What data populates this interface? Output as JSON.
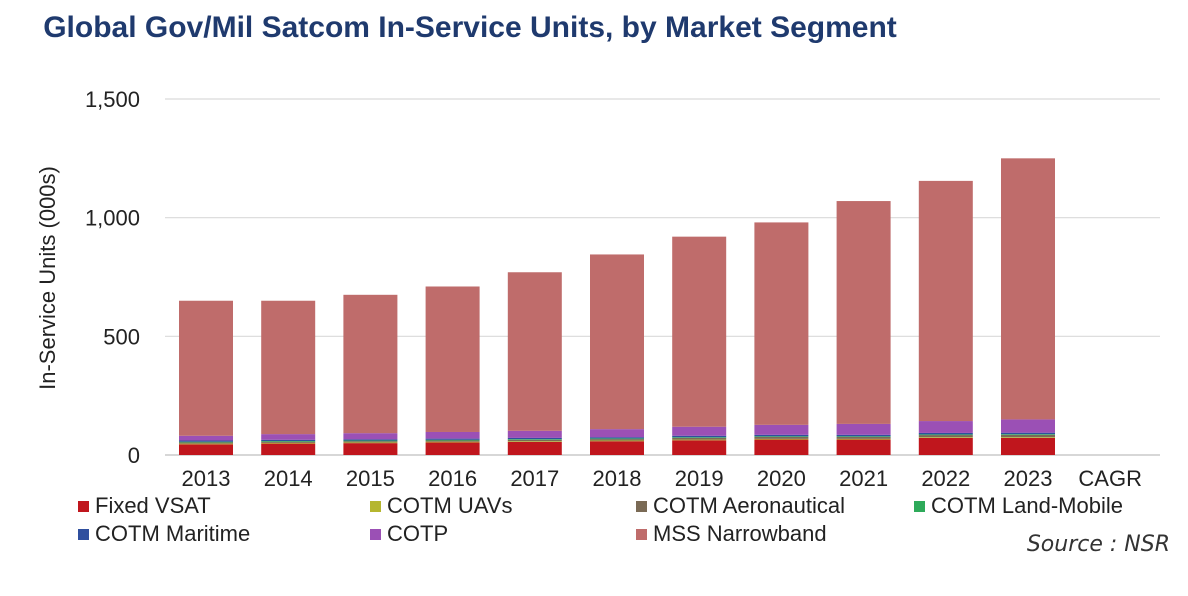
{
  "chart_data": {
    "type": "bar",
    "stacked": true,
    "title": "Global Gov/Mil Satcom In-Service Units, by Market Segment",
    "ylabel": "In-Service Units (000s)",
    "xlabel": "",
    "ylim": [
      0,
      1500
    ],
    "yticks": [
      0,
      500,
      1000,
      1500
    ],
    "ytick_labels": [
      "0",
      "500",
      "1,000",
      "1,500"
    ],
    "grid": true,
    "legend_placement": "bottom",
    "categories": [
      "2013",
      "2014",
      "2015",
      "2016",
      "2017",
      "2018",
      "2019",
      "2020",
      "2021",
      "2022",
      "2023",
      "CAGR"
    ],
    "series": [
      {
        "name": "Fixed VSAT",
        "color": "#c0161d",
        "values": [
          45,
          48,
          50,
          53,
          55,
          58,
          62,
          65,
          65,
          72,
          72,
          null
        ]
      },
      {
        "name": "COTM UAVs",
        "color": "#b5b62f",
        "values": [
          3,
          3,
          3,
          3,
          3,
          3,
          3,
          3,
          3,
          3,
          3,
          null
        ]
      },
      {
        "name": "COTM Aeronautical",
        "color": "#7a6a55",
        "values": [
          5,
          5,
          5,
          5,
          6,
          6,
          7,
          8,
          8,
          9,
          10,
          null
        ]
      },
      {
        "name": "COTM Land-Mobile",
        "color": "#2eaa5a",
        "values": [
          3,
          3,
          3,
          3,
          3,
          3,
          3,
          3,
          3,
          3,
          3,
          null
        ]
      },
      {
        "name": "COTM Maritime",
        "color": "#2f4f9e",
        "values": [
          5,
          5,
          5,
          5,
          5,
          5,
          6,
          6,
          6,
          6,
          6,
          null
        ]
      },
      {
        "name": "COTP",
        "color": "#9b50b5",
        "values": [
          20,
          24,
          26,
          28,
          30,
          34,
          38,
          42,
          46,
          50,
          56,
          null
        ]
      },
      {
        "name": "MSS Narrowband",
        "color": "#bf6c6b",
        "values": [
          569,
          562,
          583,
          613,
          668,
          736,
          801,
          853,
          939,
          1012,
          1100,
          null
        ]
      }
    ]
  },
  "source": "Source : NSR"
}
